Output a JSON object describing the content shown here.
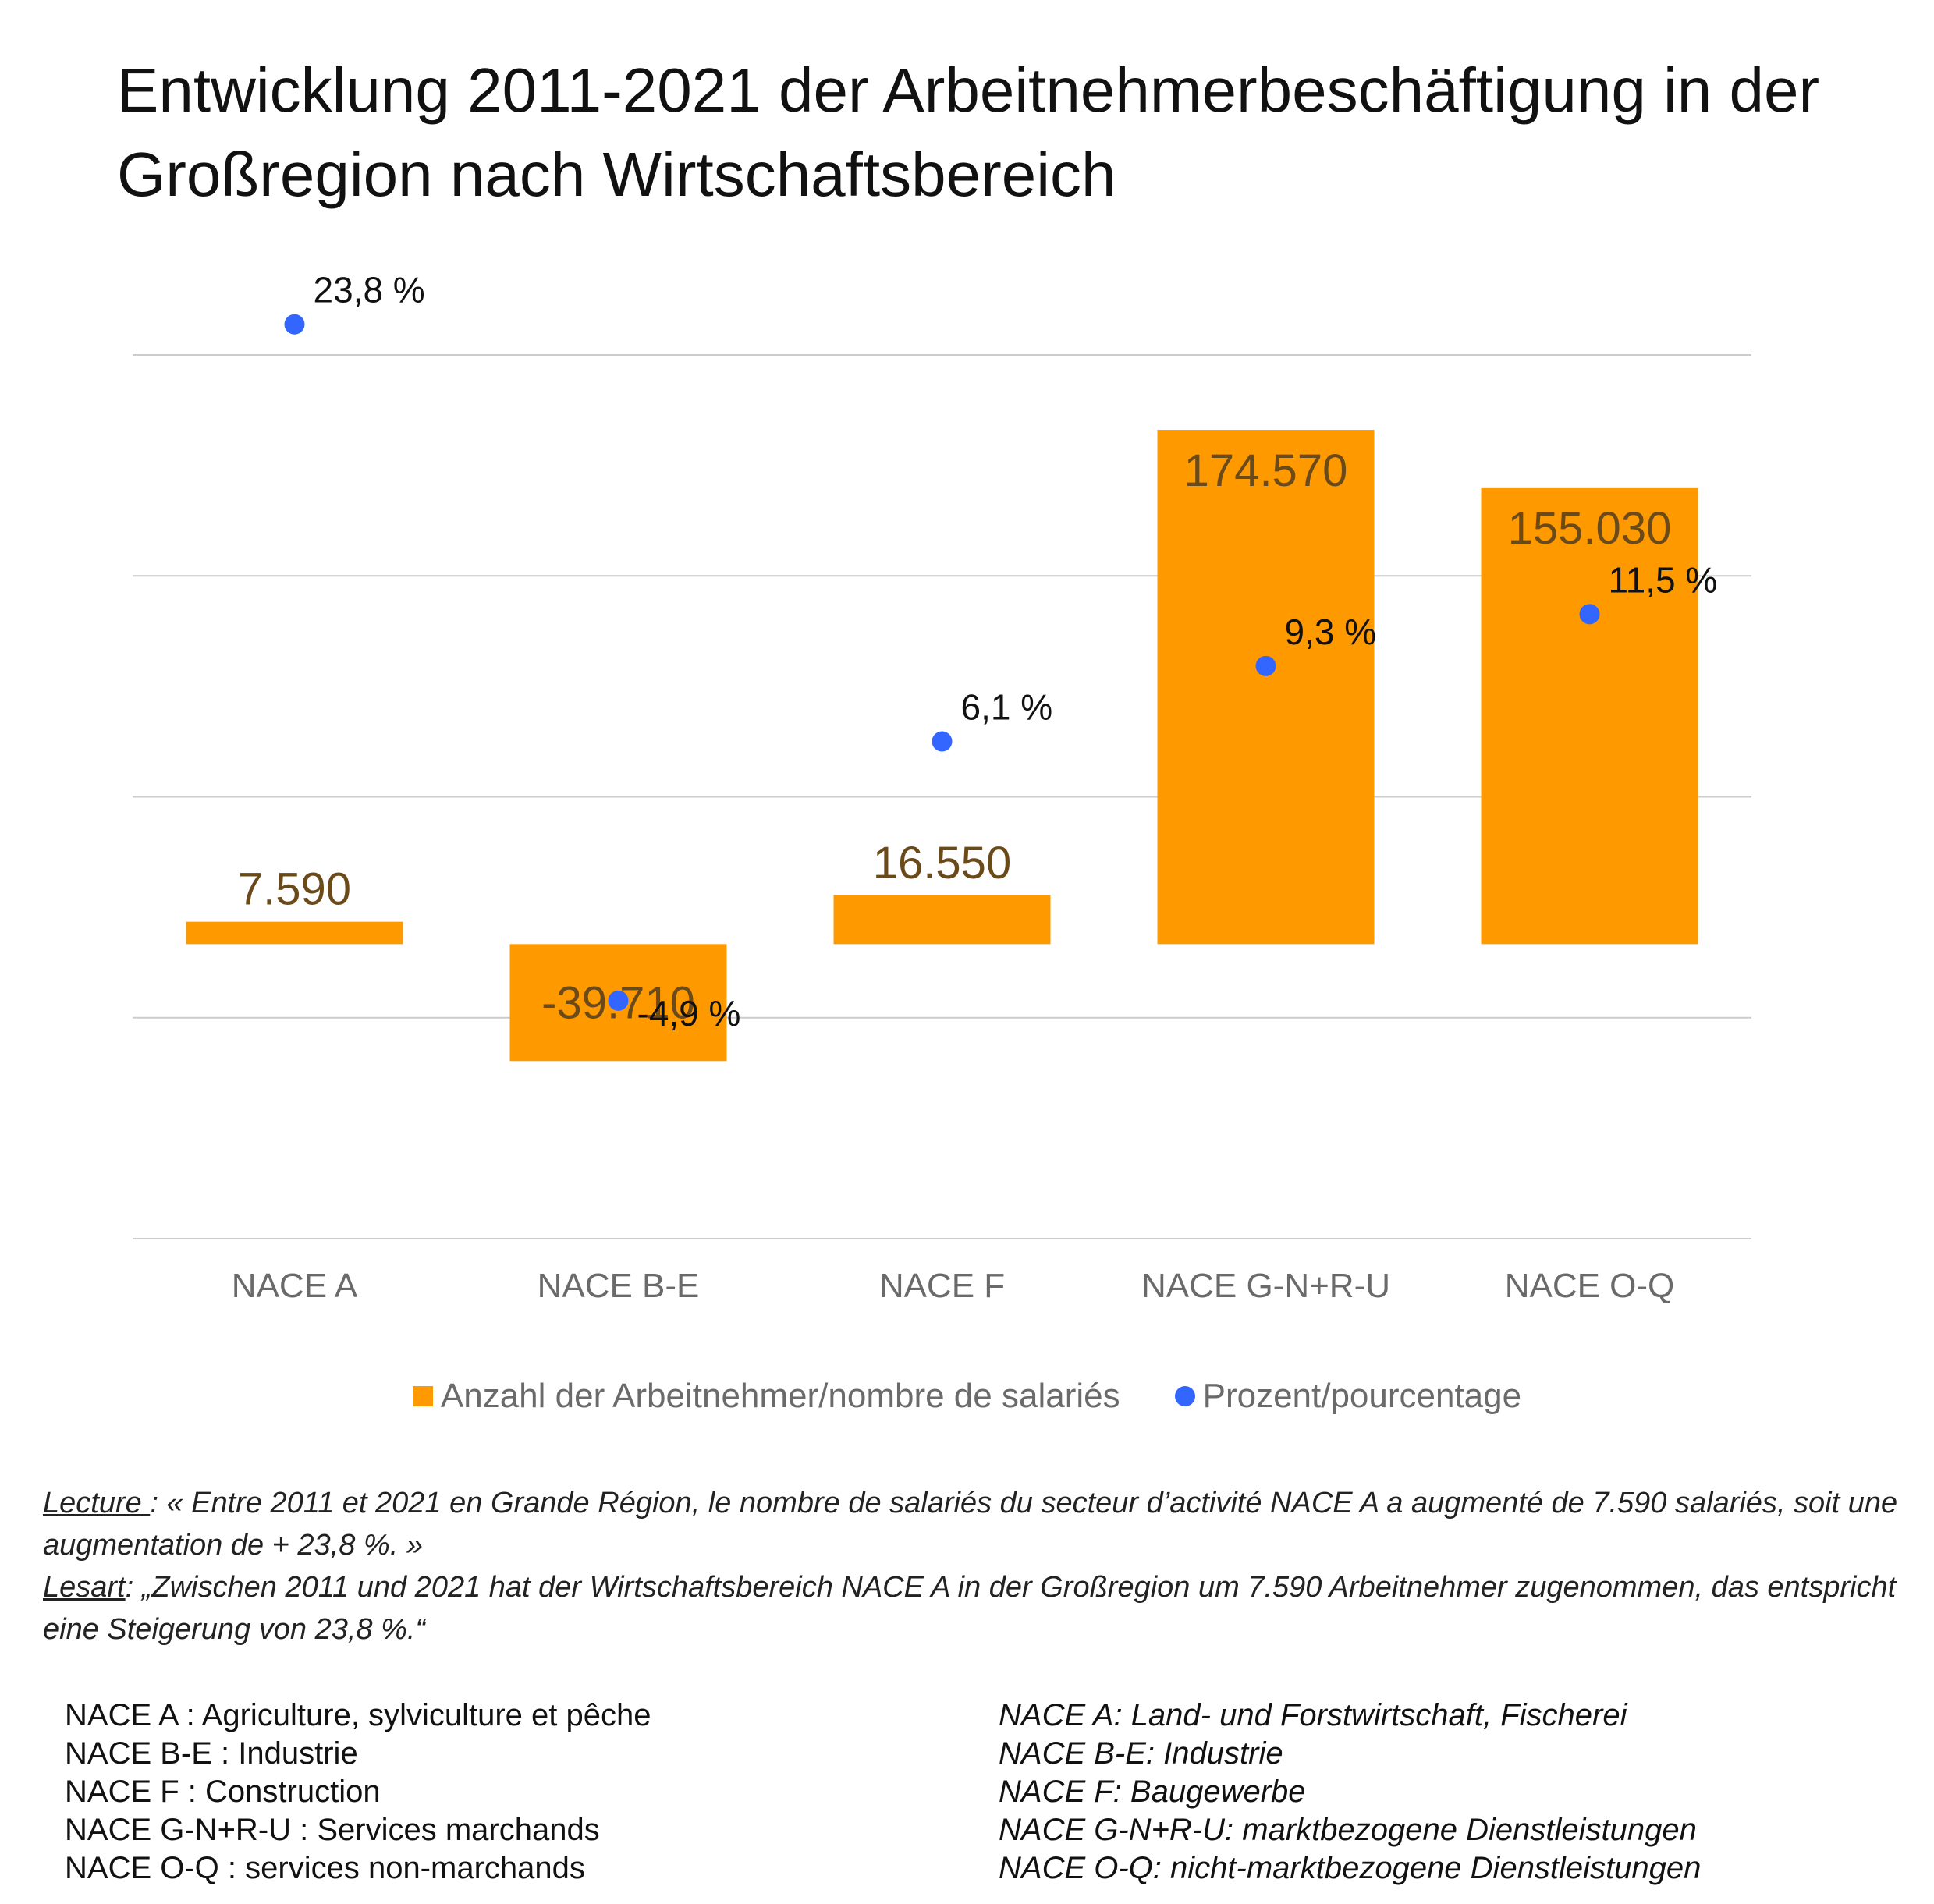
{
  "title": "Entwicklung 2011-2021 der Arbeitnehmerbeschäftigung in der Großregion nach Wirtschaftsbereich",
  "chart_data": {
    "type": "bar",
    "categories": [
      "NACE A",
      "NACE B-E",
      "NACE F",
      "NACE G-N+R-U",
      "NACE O-Q"
    ],
    "series": [
      {
        "name": "Anzahl der Arbeitnehmer/nombre de salariés",
        "type": "bar",
        "color": "#ff9900",
        "values": [
          7590,
          -39710,
          16550,
          174570,
          155030
        ],
        "labels": [
          "7.590",
          "-39.710",
          "16.550",
          "174.570",
          "155.030"
        ],
        "ylim": [
          -100000,
          200000
        ]
      },
      {
        "name": "Prozent/pourcentage",
        "type": "scatter",
        "color": "#3366ff",
        "values": [
          23.8,
          -4.9,
          6.1,
          9.3,
          11.5
        ],
        "labels": [
          "23,8 %",
          "-4,9 %",
          "6,1 %",
          "9,3 %",
          "11,5 %"
        ],
        "ylim": [
          -15,
          22.5
        ]
      }
    ],
    "gridlines": true,
    "legend_position": "bottom",
    "axis_color": "#cccccc"
  },
  "reading": {
    "fr_label": "Lecture ",
    "fr_text": ": « Entre 2011 et 2021 en Grande Région, le nombre de salariés du secteur d’activité NACE A a augmenté de 7.590 salariés, soit une augmentation de + 23,8 %. »",
    "de_label": "Lesart",
    "de_text": ": „Zwischen 2011 und 2021 hat der Wirtschaftsbereich NACE A in der Großregion um 7.590 Arbeitnehmer zugenommen, das entspricht eine Steigerung von 23,8 %.“"
  },
  "definitions_fr": [
    "NACE A : Agriculture, sylviculture et pêche",
    "NACE B-E : Industrie",
    "NACE F : Construction",
    "NACE G-N+R-U : Services marchands",
    "NACE O-Q : services non-marchands"
  ],
  "definitions_de": [
    "NACE A: Land- und Forstwirtschaft, Fischerei",
    "NACE B-E: Industrie",
    "NACE F: Baugewerbe",
    "NACE G-N+R-U: marktbezogene Dienstleistungen",
    "NACE O-Q: nicht-marktbezogene Dienstleistungen"
  ]
}
